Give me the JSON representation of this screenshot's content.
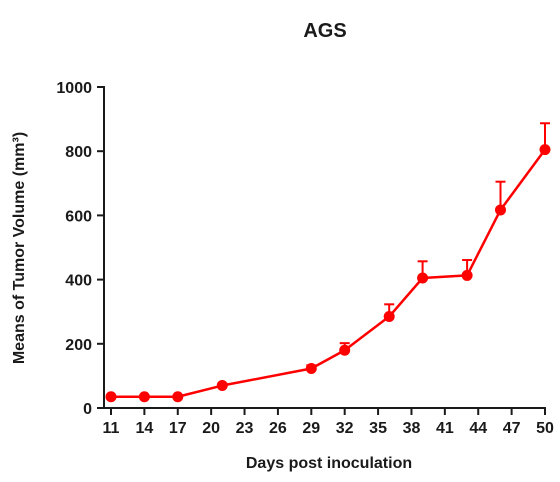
{
  "chart_data": {
    "type": "line",
    "title": "AGS",
    "xlabel": "Days post inoculation",
    "ylabel": "Means of Tumor Volume (mm³)",
    "x_ticks": [
      11,
      14,
      17,
      20,
      23,
      26,
      29,
      32,
      35,
      38,
      41,
      44,
      47,
      50
    ],
    "y_ticks": [
      0,
      200,
      400,
      600,
      800,
      1000
    ],
    "xlim": [
      11,
      50
    ],
    "ylim": [
      0,
      1000
    ],
    "grid": false,
    "series_color": "#ff0000",
    "series": [
      {
        "x": [
          11,
          14,
          17,
          21,
          29,
          32,
          36,
          39,
          43,
          46,
          50
        ],
        "values": [
          35,
          35,
          35,
          70,
          123,
          180,
          285,
          405,
          413,
          617,
          805
        ],
        "error_plus": [
          5,
          4,
          4,
          6,
          10,
          22,
          38,
          52,
          48,
          88,
          82
        ]
      }
    ]
  }
}
